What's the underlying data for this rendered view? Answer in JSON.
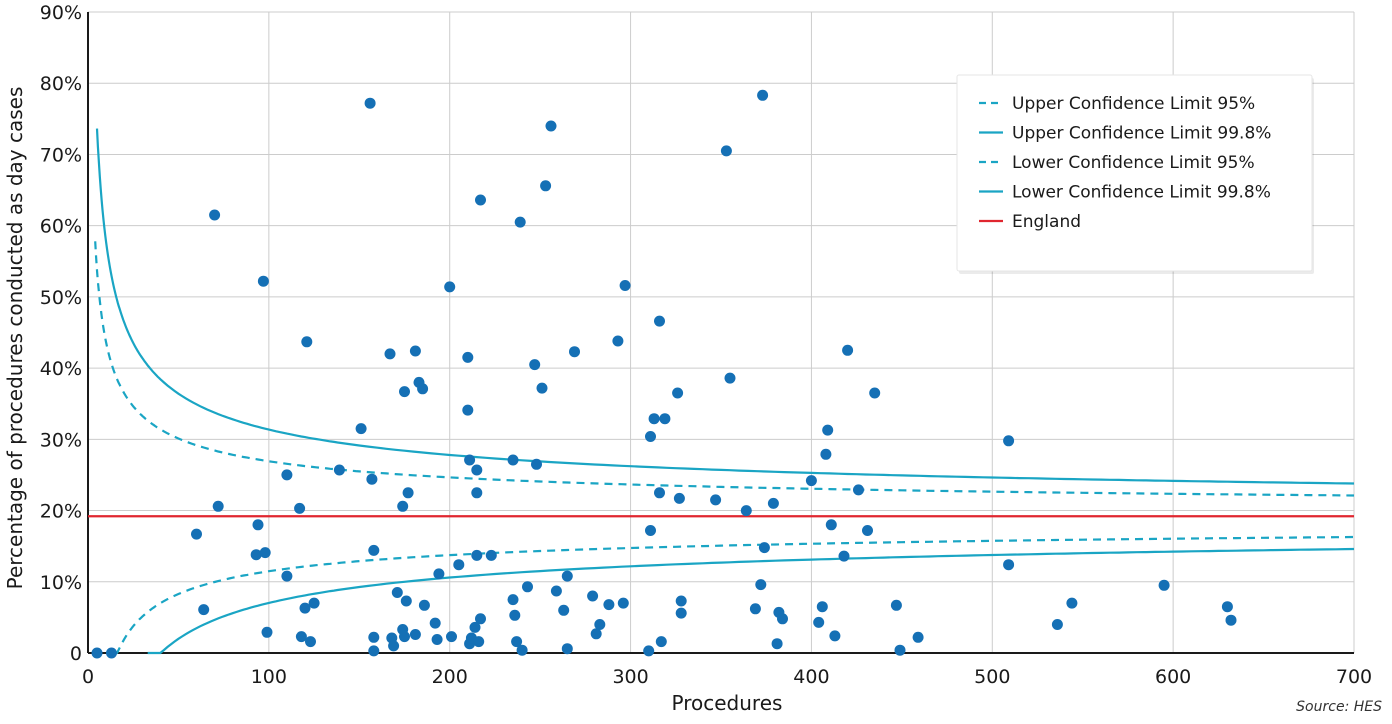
{
  "chart_data": {
    "type": "scatter",
    "xlabel": "Procedures",
    "ylabel": "Percentage of procedures conducted as day cases",
    "source": "Source: HES",
    "xlim": [
      0,
      700
    ],
    "ylim": [
      0,
      90
    ],
    "x_ticks": [
      0,
      100,
      200,
      300,
      400,
      500,
      600,
      700
    ],
    "x_tick_labels": [
      "0",
      "100",
      "200",
      "300",
      "400",
      "500",
      "600",
      "700"
    ],
    "y_ticks": [
      0,
      10,
      20,
      30,
      40,
      50,
      60,
      70,
      80,
      90
    ],
    "y_tick_labels": [
      "0",
      "10%",
      "20%",
      "30%",
      "40%",
      "50%",
      "60%",
      "70%",
      "80%",
      "90%"
    ],
    "grid": true,
    "legend_position": "top-right",
    "england_rate": 19.2,
    "colors": {
      "points": "#1570b5",
      "limits": "#1aa5c4",
      "england": "#e0262f",
      "grid": "#cccccc"
    },
    "legend": [
      {
        "label": "Upper Confidence Limit 95%",
        "style": "dashed",
        "color": "#1aa5c4"
      },
      {
        "label": "Upper Confidence Limit 99.8%",
        "style": "solid",
        "color": "#1aa5c4"
      },
      {
        "label": "Lower Confidence Limit 95%",
        "style": "dashed",
        "color": "#1aa5c4"
      },
      {
        "label": "Lower Confidence Limit 99.8%",
        "style": "solid",
        "color": "#1aa5c4"
      },
      {
        "label": "England",
        "style": "solid",
        "color": "#e0262f"
      }
    ],
    "points": [
      [
        5,
        0
      ],
      [
        13,
        0
      ],
      [
        60,
        16.7
      ],
      [
        64,
        6.1
      ],
      [
        70,
        61.5
      ],
      [
        72,
        20.6
      ],
      [
        94,
        18
      ],
      [
        93,
        13.8
      ],
      [
        97,
        52.2
      ],
      [
        98,
        14.1
      ],
      [
        99,
        2.9
      ],
      [
        110,
        25
      ],
      [
        110,
        10.8
      ],
      [
        117,
        20.3
      ],
      [
        118,
        2.3
      ],
      [
        120,
        6.3
      ],
      [
        121,
        43.7
      ],
      [
        123,
        1.6
      ],
      [
        125,
        7
      ],
      [
        139,
        25.7
      ],
      [
        151,
        31.5
      ],
      [
        156,
        77.2
      ],
      [
        157,
        24.4
      ],
      [
        158,
        14.4
      ],
      [
        158,
        2.2
      ],
      [
        158,
        0.3
      ],
      [
        167,
        42
      ],
      [
        168,
        2.1
      ],
      [
        169,
        1
      ],
      [
        171,
        8.5
      ],
      [
        174,
        20.6
      ],
      [
        174,
        3.3
      ],
      [
        175,
        36.7
      ],
      [
        175,
        2.3
      ],
      [
        176,
        7.3
      ],
      [
        177,
        22.5
      ],
      [
        181,
        42.4
      ],
      [
        181,
        2.6
      ],
      [
        183,
        38
      ],
      [
        185,
        37.1
      ],
      [
        186,
        6.7
      ],
      [
        192,
        4.2
      ],
      [
        193,
        1.9
      ],
      [
        194,
        11.1
      ],
      [
        200,
        51.4
      ],
      [
        201,
        2.3
      ],
      [
        205,
        12.4
      ],
      [
        210,
        34.1
      ],
      [
        210,
        41.5
      ],
      [
        211,
        27.1
      ],
      [
        211,
        1.3
      ],
      [
        212,
        2.1
      ],
      [
        214,
        3.6
      ],
      [
        215,
        13.7
      ],
      [
        215,
        22.5
      ],
      [
        215,
        25.7
      ],
      [
        216,
        1.6
      ],
      [
        217,
        63.6
      ],
      [
        217,
        4.8
      ],
      [
        223,
        13.7
      ],
      [
        235,
        27.1
      ],
      [
        235,
        7.5
      ],
      [
        236,
        5.3
      ],
      [
        237,
        1.6
      ],
      [
        239,
        60.5
      ],
      [
        240,
        0.4
      ],
      [
        243,
        9.3
      ],
      [
        247,
        40.5
      ],
      [
        248,
        26.5
      ],
      [
        251,
        37.2
      ],
      [
        253,
        65.6
      ],
      [
        256,
        74
      ],
      [
        259,
        8.7
      ],
      [
        263,
        6
      ],
      [
        265,
        10.8
      ],
      [
        265,
        0.6
      ],
      [
        269,
        42.3
      ],
      [
        279,
        8
      ],
      [
        281,
        2.7
      ],
      [
        283,
        4
      ],
      [
        288,
        6.8
      ],
      [
        293,
        43.8
      ],
      [
        296,
        7
      ],
      [
        297,
        51.6
      ],
      [
        310,
        0.3
      ],
      [
        311,
        30.4
      ],
      [
        311,
        17.2
      ],
      [
        313,
        32.9
      ],
      [
        316,
        46.6
      ],
      [
        316,
        22.5
      ],
      [
        317,
        1.6
      ],
      [
        319,
        32.9
      ],
      [
        326,
        36.5
      ],
      [
        327,
        21.7
      ],
      [
        328,
        7.3
      ],
      [
        328,
        5.6
      ],
      [
        347,
        21.5
      ],
      [
        353,
        70.5
      ],
      [
        355,
        38.6
      ],
      [
        364,
        20
      ],
      [
        369,
        6.2
      ],
      [
        372,
        9.6
      ],
      [
        373,
        78.3
      ],
      [
        374,
        14.8
      ],
      [
        379,
        21
      ],
      [
        381,
        1.3
      ],
      [
        382,
        5.7
      ],
      [
        384,
        4.8
      ],
      [
        400,
        24.2
      ],
      [
        404,
        4.3
      ],
      [
        406,
        6.5
      ],
      [
        408,
        27.9
      ],
      [
        409,
        31.3
      ],
      [
        411,
        18
      ],
      [
        413,
        2.4
      ],
      [
        418,
        13.6
      ],
      [
        420,
        42.5
      ],
      [
        426,
        22.9
      ],
      [
        431,
        17.2
      ],
      [
        435,
        36.5
      ],
      [
        447,
        6.7
      ],
      [
        449,
        0.4
      ],
      [
        459,
        2.2
      ],
      [
        509,
        29.8
      ],
      [
        509,
        12.4
      ],
      [
        536,
        4
      ],
      [
        544,
        7
      ],
      [
        595,
        9.5
      ],
      [
        630,
        6.5
      ],
      [
        632,
        4.6
      ]
    ]
  }
}
